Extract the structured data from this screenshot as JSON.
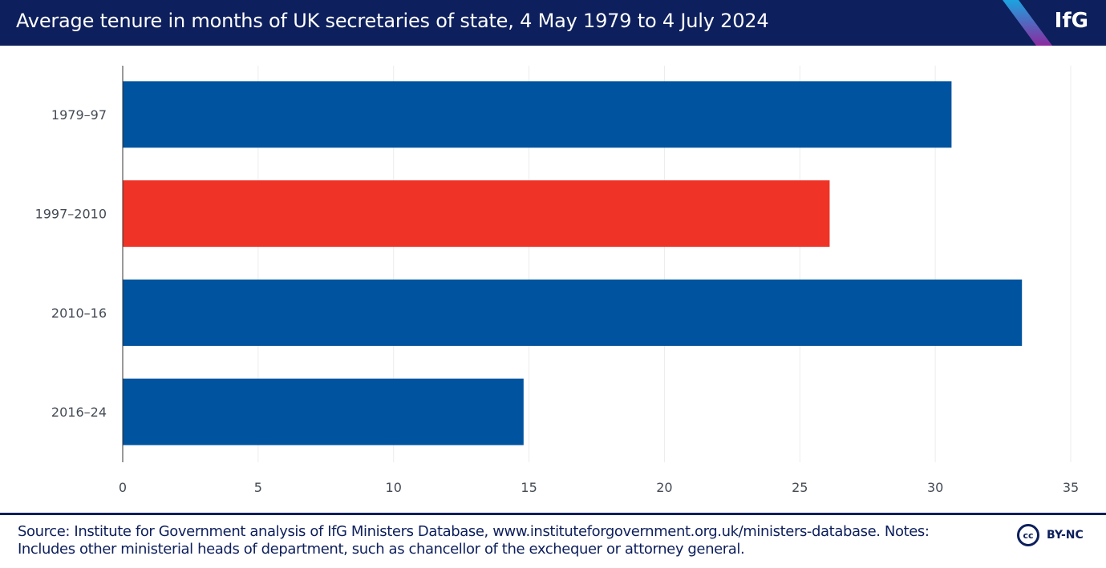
{
  "header": {
    "title": "Average tenure in months of UK secretaries of state, 4 May 1979 to 4 July 2024",
    "logo": "IfG"
  },
  "footer": {
    "line1": "Source: Institute for Government analysis of IfG Ministers Database, www.instituteforgovernment.org.uk/ministers-database. Notes:",
    "line2": "Includes other ministerial heads of department, such as chancellor of the exchequer or attorney general.",
    "license_icon": "cc",
    "license": "BY-NC"
  },
  "colors": {
    "navy": "#0d1f5c",
    "blue": "#00539f",
    "red": "#ef3326"
  },
  "chart_data": {
    "type": "bar",
    "orientation": "horizontal",
    "title": "Average tenure in months of UK secretaries of state, 4 May 1979 to 4 July 2024",
    "categories": [
      "1979–97",
      "1997–2010",
      "2010–16",
      "2016–24"
    ],
    "values": [
      30.6,
      26.1,
      33.2,
      14.8
    ],
    "bar_colors": [
      "#00539f",
      "#ef3326",
      "#00539f",
      "#00539f"
    ],
    "xlabel": "",
    "ylabel": "",
    "xlim": [
      0,
      35
    ],
    "xticks": [
      0,
      5,
      10,
      15,
      20,
      25,
      30,
      35
    ],
    "grid": true,
    "legend": "none"
  }
}
